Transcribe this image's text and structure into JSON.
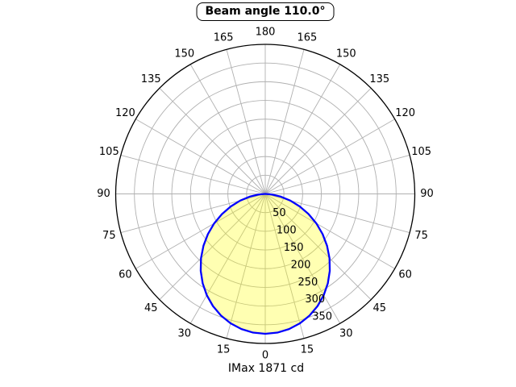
{
  "title": "Beam angle 110.0°",
  "caption": "IMax 1871 cd",
  "chart_data": {
    "type": "polar",
    "title": "Beam angle 110.0°",
    "footer": "IMax 1871 cd",
    "beam_angle_deg": 110.0,
    "imax_cd": 1871,
    "zero_direction": "down",
    "angular_tick_step_deg": 15,
    "angular_ticks_deg": [
      0,
      15,
      30,
      45,
      60,
      75,
      90,
      105,
      120,
      135,
      150,
      165,
      180
    ],
    "angular_labels_mirrored": true,
    "radial_ticks": [
      50,
      100,
      150,
      200,
      250,
      300,
      350
    ],
    "radial_label_angle_deg": 22.5,
    "r_max": 400,
    "grid_on": true,
    "curve": {
      "name": "luminous-intensity-distribution",
      "symmetric_about_vertical": true,
      "angles_deg": [
        0,
        5,
        10,
        15,
        20,
        25,
        30,
        35,
        40,
        45,
        50,
        55,
        60,
        65,
        70,
        75,
        80,
        85,
        90
      ],
      "intensities": [
        374.2,
        372.4,
        367.1,
        358.4,
        346.3,
        331.0,
        312.8,
        291.8,
        268.5,
        243.0,
        215.7,
        187.2,
        157.8,
        128.0,
        98.3,
        69.4,
        42.2,
        17.9,
        0.0
      ]
    },
    "colors": {
      "curve_stroke": "#0000ff",
      "curve_fill": "#ffff00",
      "curve_fill_opacity": 0.3,
      "grid": "#b0b0b0",
      "outer_ring": "#000000",
      "background": "#ffffff",
      "text": "#000000"
    }
  }
}
